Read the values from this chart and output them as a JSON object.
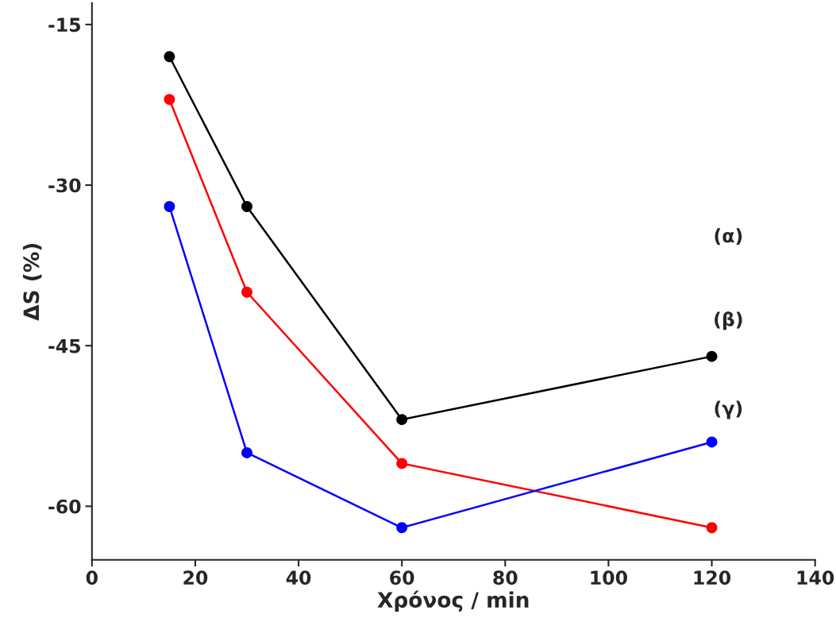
{
  "chart_data": {
    "type": "line",
    "xlabel": "Χρόνος / min",
    "ylabel": "ΔS (%)",
    "x": [
      15,
      30,
      60,
      120
    ],
    "series": [
      {
        "color": "#000000",
        "values": [
          -18,
          -32,
          -51.9,
          -46
        ]
      },
      {
        "color": "#ff0000",
        "values": [
          -22,
          -40,
          -56,
          -62
        ]
      },
      {
        "color": "#0000ff",
        "values": [
          -32,
          -55,
          -62,
          -54
        ]
      }
    ],
    "xlim": [
      0,
      140
    ],
    "xticks": [
      0,
      20,
      40,
      60,
      80,
      100,
      120,
      140
    ],
    "ylim": [
      -65,
      -13
    ],
    "yticks": [
      -15,
      -30,
      -45,
      -60
    ],
    "marker": "circle",
    "line_style": "solid",
    "grid": false,
    "legend": false,
    "annotations": [
      "(α)",
      "(β)",
      "(γ)"
    ]
  }
}
